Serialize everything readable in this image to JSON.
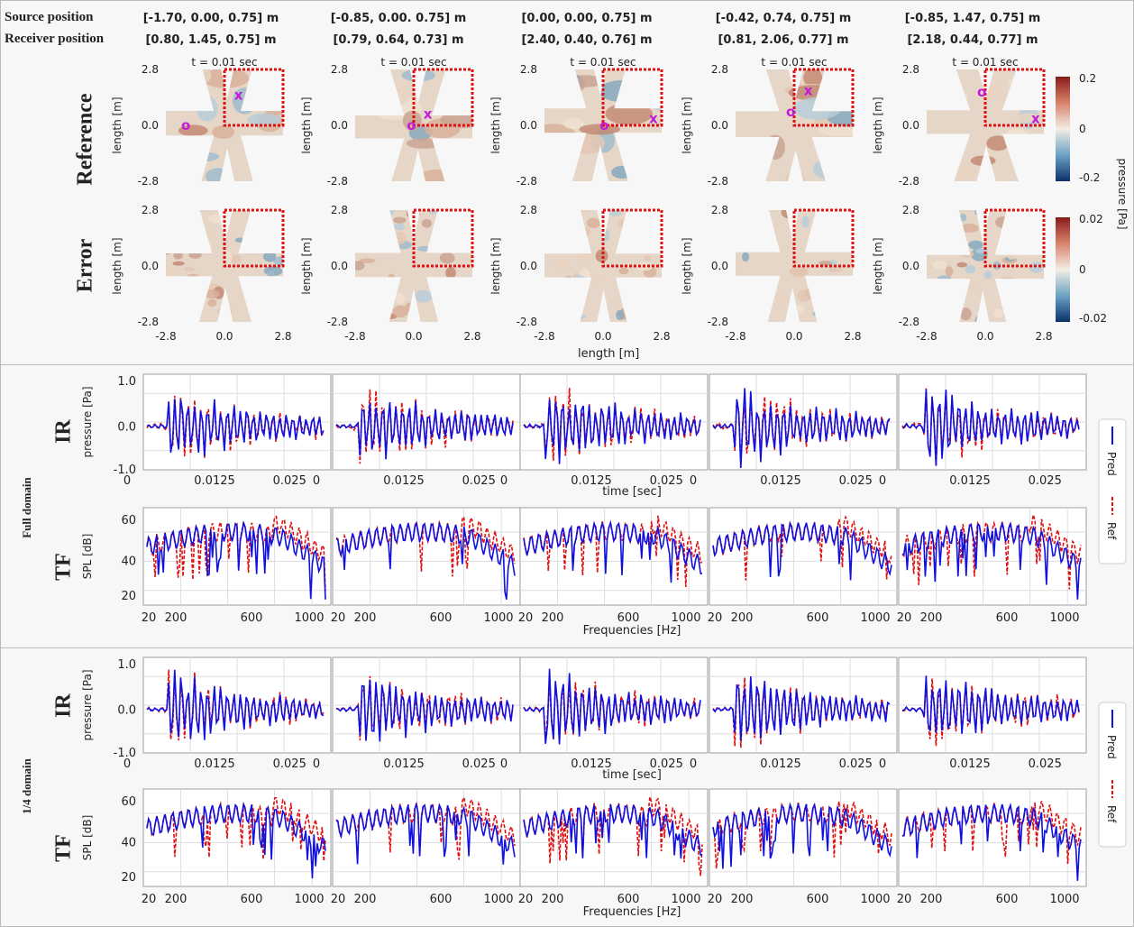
{
  "header": {
    "source_label": "Source position",
    "receiver_label": "Receiver position",
    "sources": [
      "[-1.70, 0.00, 0.75] m",
      "[-0.85, 0.00. 0.75] m",
      "[0.00, 0.00, 0.75] m",
      "[-0.42, 0.74, 0.75] m",
      "[-0.85, 1.47, 0.75] m"
    ],
    "receivers": [
      "[0.80, 1.45, 0.75] m",
      "[0.79, 0.64, 0.73] m",
      "[2.40, 0.40, 0.76] m",
      "[0.81, 2.06, 0.77] m",
      "[2.18, 0.44, 0.77] m"
    ]
  },
  "fields": {
    "time_label": "t = 0.01 sec",
    "row_reference": "Reference",
    "row_error": "Error",
    "ylabel": "length [m]",
    "xlabel": "length [m]",
    "ticks": [
      "-2.8",
      "0.0",
      "2.8"
    ],
    "source_marker": "o",
    "receiver_marker": "x",
    "colorbar_label": "pressure [Pa]",
    "colorbar_ref_ticks": [
      "0.2",
      "0",
      "-0.2"
    ],
    "colorbar_err_ticks": [
      "0.02",
      "0",
      "-0.02"
    ],
    "colors": {
      "high": "#8b1a1a",
      "mid": "#f3ede4",
      "low": "#0b2f6b",
      "box": "#e01010",
      "marker": "#c21bd6"
    }
  },
  "sections": [
    {
      "title": "Full domain"
    },
    {
      "title": "1/4 domain"
    }
  ],
  "ir_axes": {
    "row_label": "IR",
    "ylabel": "pressure [Pa]",
    "yticks": [
      "1.0",
      "0.0",
      "-1.0"
    ],
    "xlabel": "time [sec]",
    "xticks": [
      "0",
      "0.0125",
      "0.025"
    ]
  },
  "tf_axes": {
    "row_label": "TF",
    "ylabel": "SPL [dB]",
    "yticks": [
      "60",
      "40",
      "20"
    ],
    "xlabel": "Frequencies [Hz]",
    "xticks": [
      "20",
      "200",
      "600",
      "1000"
    ]
  },
  "legend": {
    "pred": "Pred",
    "ref": "Ref"
  },
  "chart_data": [
    {
      "type": "line",
      "title": "",
      "xlabel": "time [sec]",
      "ylabel": "pressure [Pa]",
      "xlim": [
        0,
        0.03
      ],
      "ylim": [
        -1.0,
        1.2
      ],
      "series": [
        {
          "name": "Pred",
          "color": "#1010e0"
        },
        {
          "name": "Ref",
          "color": "#e01010",
          "style": "dashed"
        }
      ]
    },
    {
      "type": "line",
      "title": "",
      "xlabel": "Frequencies [Hz]",
      "ylabel": "SPL [dB]",
      "xlim": [
        20,
        1100
      ],
      "ylim": [
        15,
        65
      ],
      "series": [
        {
          "name": "Pred",
          "color": "#1010e0"
        },
        {
          "name": "Ref",
          "color": "#e01010",
          "style": "dashed"
        }
      ]
    }
  ]
}
